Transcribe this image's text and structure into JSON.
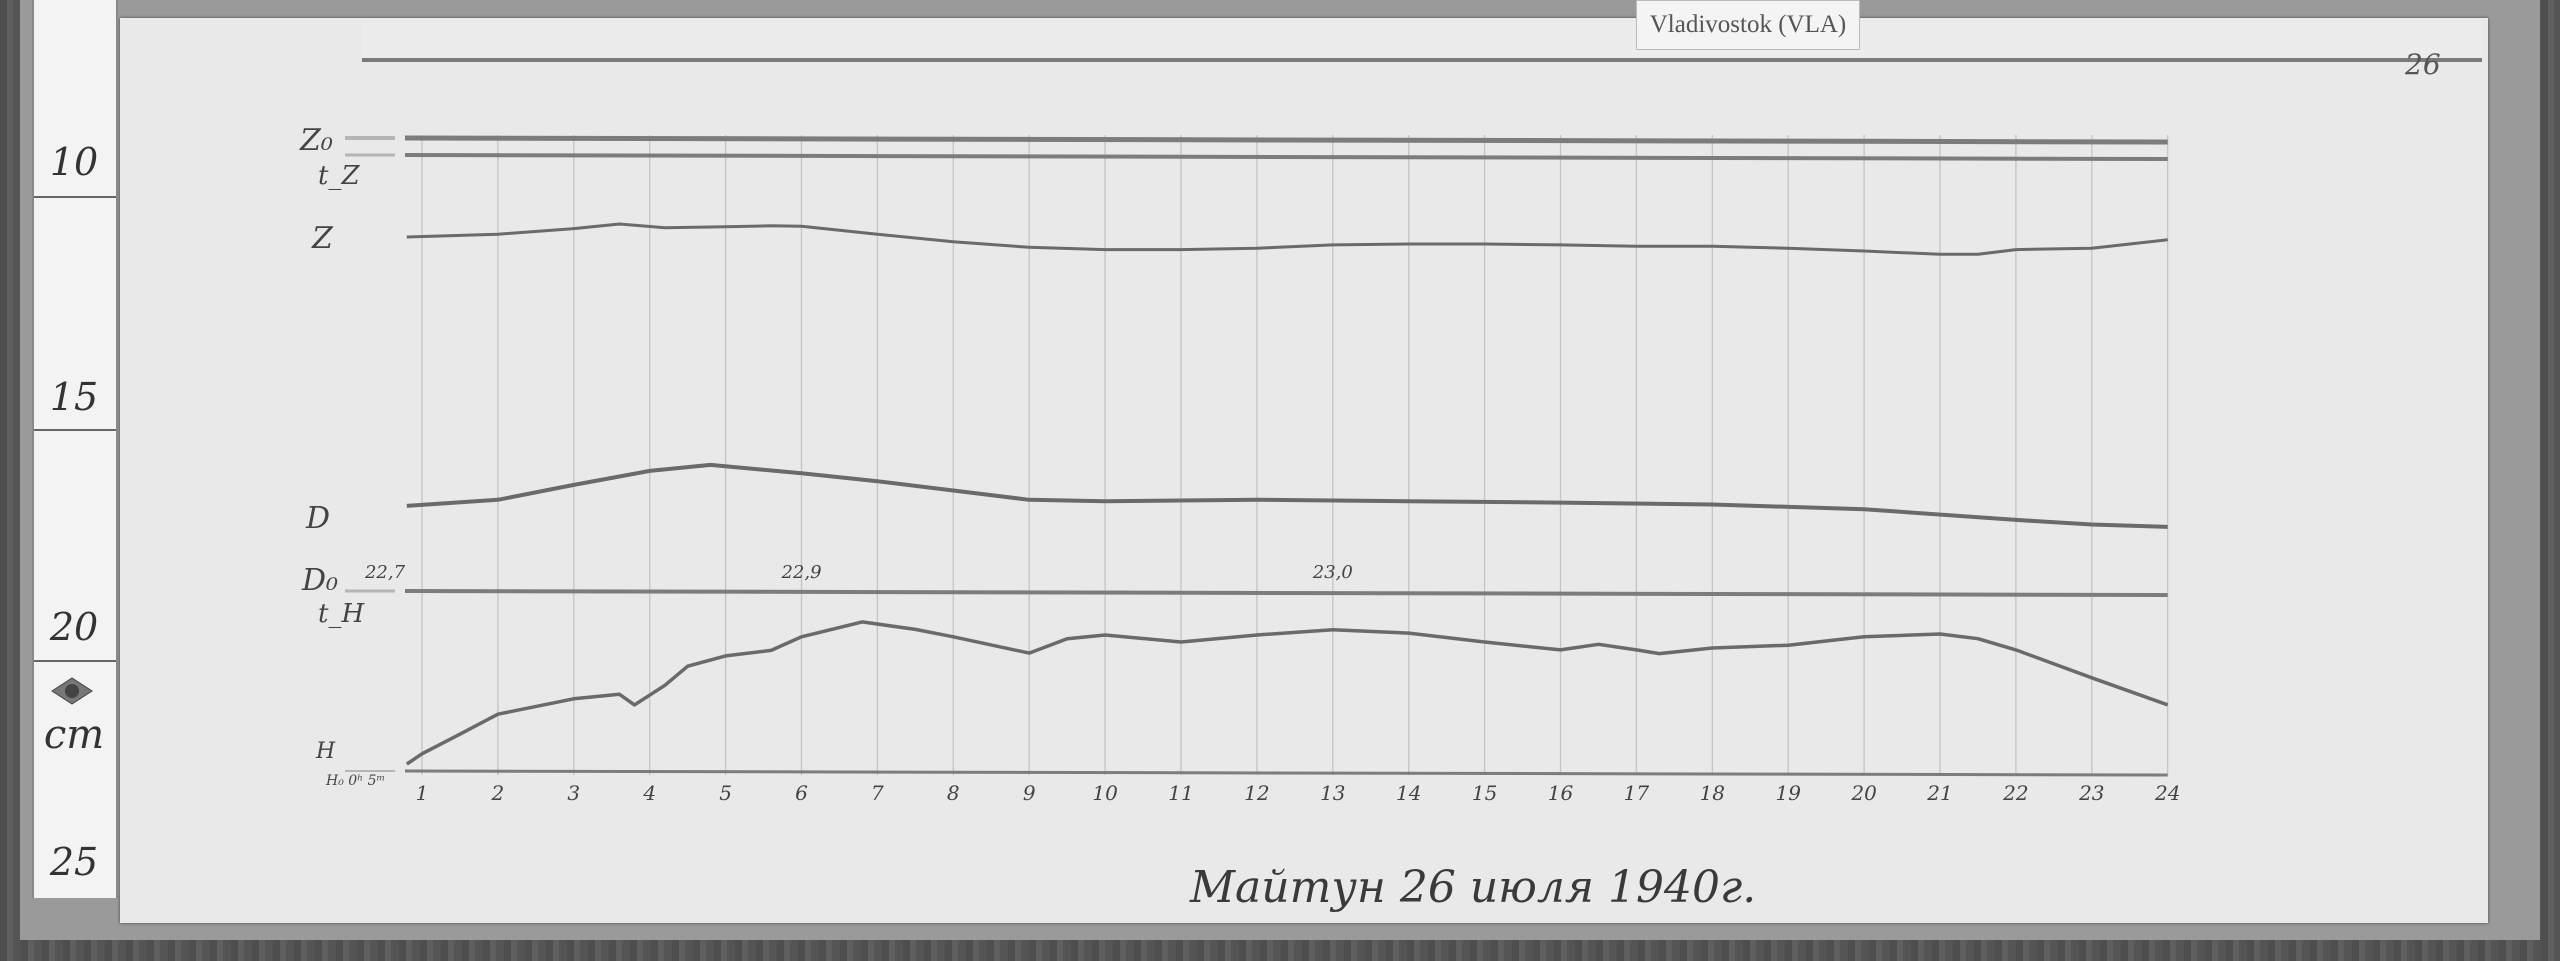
{
  "station_tag": "Vladivostok (VLA)",
  "page_number": "26",
  "caption": "Майтун 26 июля 1940г.",
  "ruler": {
    "labels": [
      "10",
      "15",
      "20",
      "25"
    ],
    "unit": "cm"
  },
  "trace_labels": {
    "Z0": "Z₀",
    "tZ": "t_Z",
    "Z": "Z",
    "D": "D",
    "D0": "D₀",
    "tH": "t_H",
    "H": "H",
    "H0": "H₀ 0ʰ 5ᵐ"
  },
  "colors": {
    "paper": "#e9e9e9",
    "trace": "#6a6a6a",
    "grid": "#c4c4c4"
  },
  "chart_data": {
    "type": "line",
    "title": "",
    "xlabel": "",
    "ylabel": "",
    "x_unit_note": "hours",
    "x_ticks": [
      "1",
      "2",
      "3",
      "4",
      "5",
      "6",
      "7",
      "8",
      "9",
      "10",
      "11",
      "12",
      "13",
      "14",
      "15",
      "16",
      "17",
      "18",
      "19",
      "20",
      "21",
      "22",
      "23",
      "24"
    ],
    "xlim": [
      0,
      24
    ],
    "y_scale_ruler_cm": [
      8,
      25
    ],
    "grid": "vertical hourly lines",
    "baseline_annotations": [
      {
        "hour": 0,
        "text": "22,7"
      },
      {
        "hour": 6,
        "text": "22,9"
      },
      {
        "hour": 13,
        "text": "23,0"
      }
    ],
    "series": [
      {
        "name": "Z",
        "points": [
          [
            0.8,
            10.88
          ],
          [
            2,
            10.82
          ],
          [
            3,
            10.7
          ],
          [
            3.6,
            10.6
          ],
          [
            4.2,
            10.68
          ],
          [
            5,
            10.66
          ],
          [
            5.6,
            10.64
          ],
          [
            6,
            10.65
          ],
          [
            7,
            10.82
          ],
          [
            8,
            10.98
          ],
          [
            9,
            11.1
          ],
          [
            10,
            11.15
          ],
          [
            11,
            11.15
          ],
          [
            12,
            11.12
          ],
          [
            13,
            11.05
          ],
          [
            14,
            11.03
          ],
          [
            15,
            11.03
          ],
          [
            16,
            11.05
          ],
          [
            17,
            11.08
          ],
          [
            18,
            11.08
          ],
          [
            19,
            11.12
          ],
          [
            20,
            11.18
          ],
          [
            21,
            11.25
          ],
          [
            21.5,
            11.25
          ],
          [
            22,
            11.15
          ],
          [
            23,
            11.12
          ],
          [
            24,
            10.94
          ]
        ]
      },
      {
        "name": "D",
        "points": [
          [
            0.8,
            16.65
          ],
          [
            2,
            16.52
          ],
          [
            3,
            16.2
          ],
          [
            4,
            15.9
          ],
          [
            4.8,
            15.77
          ],
          [
            6,
            15.95
          ],
          [
            7,
            16.12
          ],
          [
            8,
            16.32
          ],
          [
            9,
            16.52
          ],
          [
            10,
            16.55
          ],
          [
            12,
            16.52
          ],
          [
            14,
            16.55
          ],
          [
            16,
            16.58
          ],
          [
            18,
            16.62
          ],
          [
            20,
            16.72
          ],
          [
            22,
            16.95
          ],
          [
            23,
            17.05
          ],
          [
            24,
            17.1
          ]
        ]
      },
      {
        "name": "H",
        "points": [
          [
            0.8,
            22.19
          ],
          [
            1,
            21.97
          ],
          [
            1.5,
            21.55
          ],
          [
            2,
            21.12
          ],
          [
            3,
            20.79
          ],
          [
            3.6,
            20.69
          ],
          [
            3.8,
            20.92
          ],
          [
            4.2,
            20.5
          ],
          [
            4.5,
            20.09
          ],
          [
            5,
            19.87
          ],
          [
            5.6,
            19.75
          ],
          [
            6,
            19.46
          ],
          [
            6.8,
            19.14
          ],
          [
            7.5,
            19.3
          ],
          [
            8,
            19.46
          ],
          [
            9,
            19.81
          ],
          [
            9.5,
            19.5
          ],
          [
            10,
            19.42
          ],
          [
            11,
            19.57
          ],
          [
            12,
            19.42
          ],
          [
            13,
            19.31
          ],
          [
            14,
            19.38
          ],
          [
            15,
            19.57
          ],
          [
            16,
            19.74
          ],
          [
            16.5,
            19.62
          ],
          [
            17,
            19.74
          ],
          [
            17.3,
            19.82
          ],
          [
            18,
            19.7
          ],
          [
            19,
            19.64
          ],
          [
            20,
            19.46
          ],
          [
            21,
            19.4
          ],
          [
            21.5,
            19.5
          ],
          [
            22,
            19.74
          ],
          [
            23,
            20.34
          ],
          [
            24,
            20.92
          ]
        ]
      }
    ]
  }
}
